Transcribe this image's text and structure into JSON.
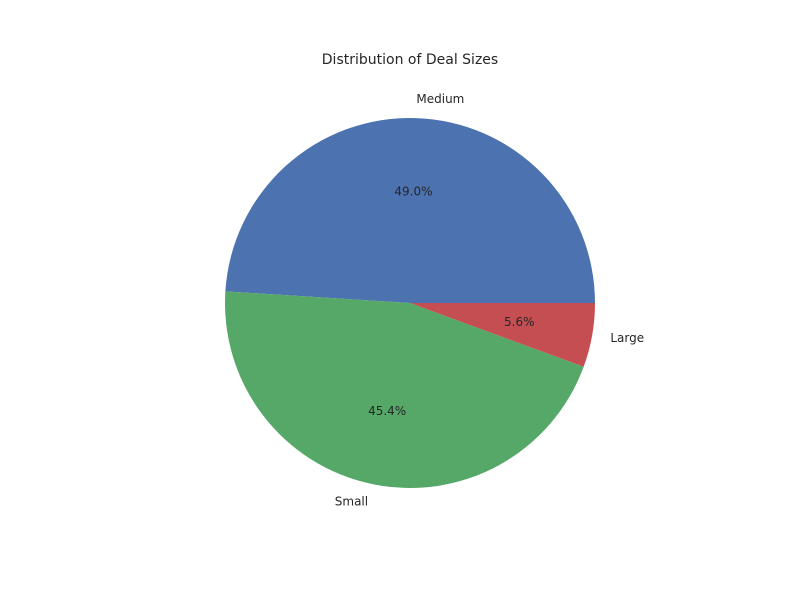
{
  "chart_data": {
    "type": "pie",
    "title": "Distribution of Deal Sizes",
    "categories": [
      "Medium",
      "Small",
      "Large"
    ],
    "values": [
      49.0,
      45.4,
      5.6
    ],
    "value_labels": [
      "49.0%",
      "45.4%",
      "5.6%"
    ],
    "colors": [
      "#4c72b0",
      "#55a868",
      "#c44e52"
    ],
    "start_angle_deg": 0,
    "direction": "counterclockwise"
  }
}
